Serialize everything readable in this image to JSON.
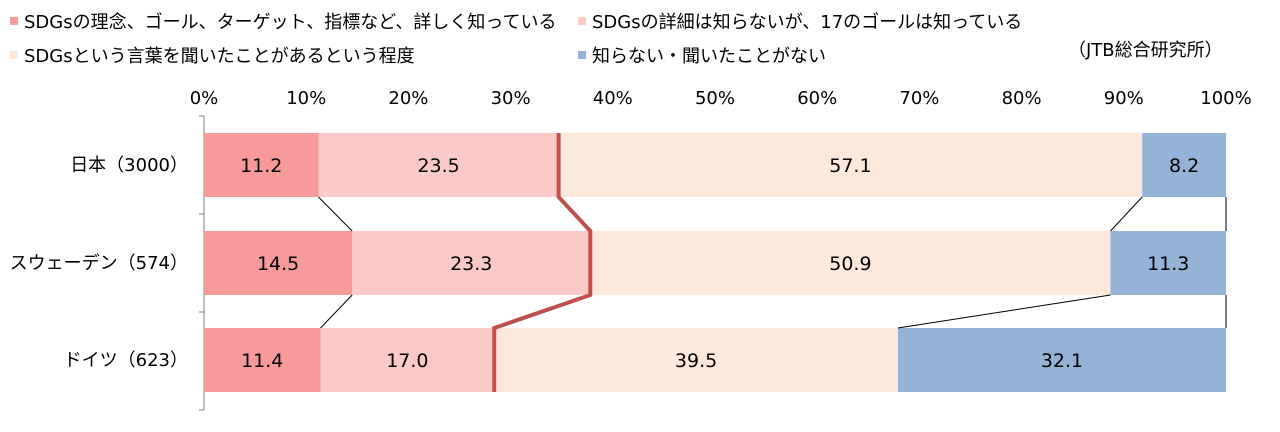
{
  "source_note": "（JTB総合研究所）",
  "colors": {
    "seg0": "#f79a99",
    "seg1": "#fbc9c8",
    "seg2": "#fde9dc",
    "seg3": "#95b3d7",
    "connector": "#c0504d",
    "axis": "#808080",
    "text": "#000000"
  },
  "chart_data": {
    "type": "bar",
    "orientation": "horizontal",
    "stacked": "percent",
    "categories": [
      "日本（3000）",
      "スウェーデン（574）",
      "ドイツ（623）"
    ],
    "series": [
      {
        "name": "SDGsの理念、ゴール、ターゲット、指標など、詳しく知っている",
        "values": [
          11.2,
          14.5,
          11.4
        ],
        "labels": [
          "11.2",
          "14.5",
          "11.4"
        ]
      },
      {
        "name": "SDGsの詳細は知らないが、17のゴールは知っている",
        "values": [
          23.5,
          23.3,
          17.0
        ],
        "labels": [
          "23.5",
          "23.3",
          "17.0"
        ]
      },
      {
        "name": "SDGsという言葉を聞いたことがあるという程度",
        "values": [
          57.1,
          50.9,
          39.5
        ],
        "labels": [
          "57.1",
          "50.9",
          "39.5"
        ]
      },
      {
        "name": "知らない・聞いたことがない",
        "values": [
          8.2,
          11.3,
          32.1
        ],
        "labels": [
          "8.2",
          "11.3",
          "32.1"
        ]
      }
    ],
    "xlim": [
      0,
      100
    ],
    "xticks": [
      "0%",
      "10%",
      "20%",
      "30%",
      "40%",
      "50%",
      "60%",
      "70%",
      "80%",
      "90%",
      "100%"
    ],
    "grid": false,
    "legend_position": "top"
  }
}
